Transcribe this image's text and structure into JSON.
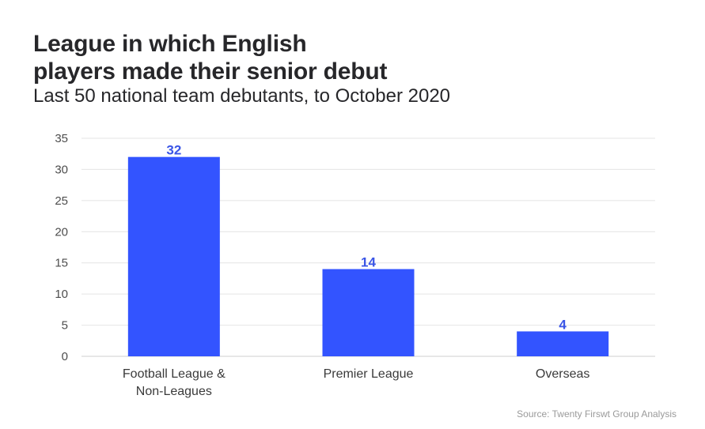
{
  "chart_data": {
    "type": "bar",
    "title_lines": [
      "League in which English",
      "players made their senior debut"
    ],
    "subtitle": "Last 50 national team debutants, to October 2020",
    "categories": [
      [
        "Football League &",
        "Non-Leagues"
      ],
      [
        "Premier League"
      ],
      [
        "Overseas"
      ]
    ],
    "values": [
      32,
      14,
      4
    ],
    "data_labels": [
      "32",
      "14",
      "4"
    ],
    "y_ticks": [
      0,
      5,
      10,
      15,
      20,
      25,
      30,
      35
    ],
    "ylim": [
      0,
      35
    ],
    "xlabel": "",
    "ylabel": "",
    "grid": true,
    "bar_color": "#3354ff",
    "label_color": "#3a55e6",
    "source": "Source: Twenty Firswt Group Analysis"
  }
}
